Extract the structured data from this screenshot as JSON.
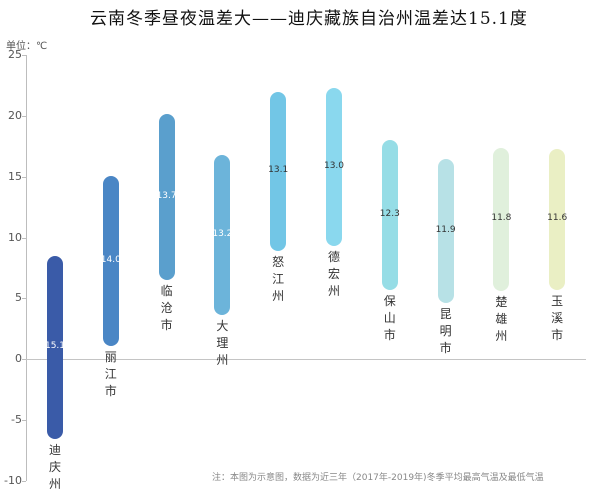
{
  "title": "云南冬季昼夜温差大——迪庆藏族自治州温差达15.1度",
  "unit_label": "单位：℃",
  "note": "注：本图为示意图，数据为近三年（2017年-2019年)冬季平均最高气温及最低气温",
  "chart_data": {
    "type": "bar",
    "subtype": "floating-range",
    "title": "云南冬季昼夜温差大——迪庆藏族自治州温差达15.1度",
    "ylabel": "单位：℃",
    "xlabel": "",
    "ylim": [
      -10,
      25
    ],
    "yticks": [
      25,
      20,
      15,
      10,
      5,
      0,
      -5,
      -10
    ],
    "grid": false,
    "categories": [
      "迪庆州",
      "丽江市",
      "临沧市",
      "大理州",
      "怒江州",
      "德宏州",
      "保山市",
      "昆明市",
      "楚雄州",
      "玉溪市"
    ],
    "series": [
      {
        "name": "平均最高气温",
        "values": [
          8.5,
          15.1,
          20.2,
          16.8,
          22.0,
          22.3,
          18.0,
          16.5,
          17.4,
          17.3
        ]
      },
      {
        "name": "平均最低气温",
        "values": [
          -6.6,
          1.1,
          6.5,
          3.6,
          8.9,
          9.3,
          5.7,
          4.6,
          5.6,
          5.7
        ]
      },
      {
        "name": "温差",
        "values": [
          15.1,
          14.0,
          13.7,
          13.2,
          13.1,
          13.0,
          12.3,
          11.9,
          11.8,
          11.6
        ]
      }
    ],
    "colors": [
      "#3a5ba8",
      "#4a86c5",
      "#5a9fcd",
      "#6cb4da",
      "#72c6e6",
      "#8ad8ee",
      "#96dde6",
      "#b7e1e6",
      "#e0f0dc",
      "#eaefc4"
    ],
    "value_label_colors": [
      "#ffffff",
      "#ffffff",
      "#ffffff",
      "#ffffff",
      "#333333",
      "#333333",
      "#333333",
      "#333333",
      "#333333",
      "#333333"
    ],
    "annotation": "注：本图为示意图，数据为近三年（2017年-2019年)冬季平均最高气温及最低气温"
  }
}
